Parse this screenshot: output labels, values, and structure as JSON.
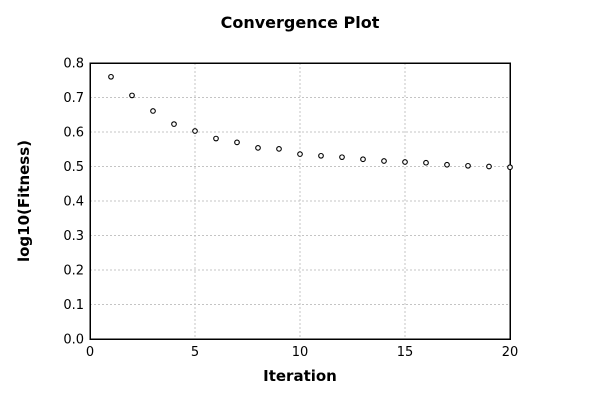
{
  "title": "Convergence Plot",
  "chart_data": {
    "type": "scatter",
    "title": "Convergence Plot",
    "xlabel": "Iteration",
    "ylabel": "log10(Fitness)",
    "xlim": [
      0,
      20
    ],
    "ylim": [
      0.0,
      0.8
    ],
    "xticks": [
      0,
      5,
      10,
      15,
      20
    ],
    "yticks": [
      0.0,
      0.1,
      0.2,
      0.3,
      0.4,
      0.5,
      0.6,
      0.7,
      0.8
    ],
    "grid": true,
    "legend": "none",
    "marker": "open-circle",
    "x": [
      1,
      2,
      3,
      4,
      5,
      6,
      7,
      8,
      9,
      10,
      11,
      12,
      13,
      14,
      15,
      16,
      17,
      18,
      19,
      20
    ],
    "y": [
      0.76,
      0.706,
      0.661,
      0.623,
      0.603,
      0.581,
      0.57,
      0.554,
      0.551,
      0.536,
      0.531,
      0.527,
      0.521,
      0.516,
      0.513,
      0.511,
      0.505,
      0.502,
      0.5,
      0.498
    ]
  },
  "colors": {
    "background": "#ffffff",
    "text": "#000000",
    "axis": "#000000",
    "grid": "#c4c4c4",
    "marker_stroke": "#000000",
    "marker_fill": "#ffffff"
  }
}
